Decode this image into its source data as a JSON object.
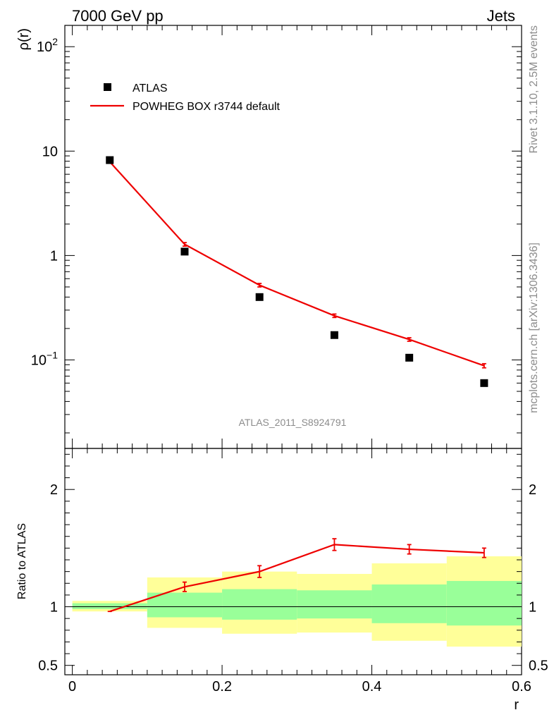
{
  "header": {
    "left": "7000 GeV pp",
    "right": "Jets"
  },
  "side_labels": {
    "rivet": "Rivet 3.1.10,  2.5M events",
    "mcplots": "mcplots.cern.ch [arXiv:1306.3436]"
  },
  "chart_data": {
    "type": "scatter",
    "analysis_label": "ATLAS_2011_S8924791",
    "xlabel": "r",
    "x_ticks": [
      "0",
      "0.2",
      "0.4",
      "0.6"
    ],
    "xlim": [
      -0.01,
      0.6
    ],
    "main": {
      "ylabel": "ρ(r)",
      "yscale": "log",
      "ylim": [
        0.0142,
        160
      ],
      "y_ticks": [
        {
          "v": 100,
          "base": "10",
          "exp": "2"
        },
        {
          "v": 10,
          "text": "10"
        },
        {
          "v": 1,
          "text": "1"
        },
        {
          "v": 0.1,
          "base": "10",
          "exp": "−1"
        }
      ],
      "legend": [
        {
          "label": "ATLAS",
          "marker": "square",
          "color": "#000000"
        },
        {
          "label": "POWHEG BOX r3744 default",
          "marker": "line",
          "color": "#ee0000"
        }
      ],
      "series": [
        {
          "name": "ATLAS",
          "x": [
            0.05,
            0.15,
            0.25,
            0.35,
            0.45,
            0.55
          ],
          "y": [
            8.2,
            1.09,
            0.4,
            0.173,
            0.105,
            0.06
          ]
        },
        {
          "name": "POWHEG BOX r3744 default",
          "x": [
            0.05,
            0.15,
            0.25,
            0.35,
            0.45,
            0.55
          ],
          "y": [
            7.9,
            1.28,
            0.52,
            0.265,
            0.157,
            0.088
          ],
          "yerr": [
            0.0,
            0.05,
            0.02,
            0.01,
            0.006,
            0.004
          ]
        }
      ]
    },
    "ratio": {
      "ylabel": "Ratio to ATLAS",
      "ylim": [
        0.42,
        2.35
      ],
      "y_ticks": [
        {
          "v": 0.5,
          "text": "0.5"
        },
        {
          "v": 1,
          "text": "1"
        },
        {
          "v": 2,
          "text": "2"
        }
      ],
      "bins": [
        {
          "x0": 0.0,
          "x1": 0.1,
          "stat": [
            0.98,
            1.03
          ],
          "total": [
            0.96,
            1.05
          ]
        },
        {
          "x0": 0.1,
          "x1": 0.2,
          "stat": [
            0.91,
            1.12
          ],
          "total": [
            0.82,
            1.25
          ]
        },
        {
          "x0": 0.2,
          "x1": 0.3,
          "stat": [
            0.89,
            1.15
          ],
          "total": [
            0.77,
            1.3
          ]
        },
        {
          "x0": 0.3,
          "x1": 0.4,
          "stat": [
            0.9,
            1.14
          ],
          "total": [
            0.78,
            1.28
          ]
        },
        {
          "x0": 0.4,
          "x1": 0.5,
          "stat": [
            0.86,
            1.19
          ],
          "total": [
            0.71,
            1.37
          ]
        },
        {
          "x0": 0.5,
          "x1": 0.6,
          "stat": [
            0.84,
            1.22
          ],
          "total": [
            0.66,
            1.43
          ]
        }
      ],
      "series": [
        {
          "name": "POWHEG BOX r3744 default",
          "x": [
            0.05,
            0.15,
            0.25,
            0.35,
            0.45,
            0.55
          ],
          "y": [
            0.96,
            1.17,
            1.3,
            1.53,
            1.49,
            1.46
          ],
          "yerr": [
            0.0,
            0.04,
            0.05,
            0.05,
            0.04,
            0.04
          ]
        }
      ]
    }
  },
  "colors": {
    "data": "#000000",
    "mc": "#ee0000",
    "stat_band": "#99ff99",
    "total_band": "#ffff99",
    "gray_text": "#8c8c8c"
  }
}
